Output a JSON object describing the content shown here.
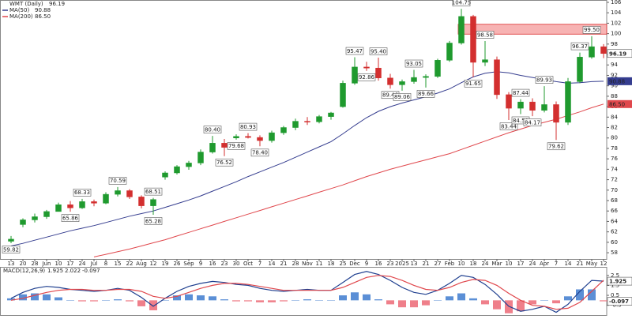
{
  "chart_data": [
    {
      "type": "candlestick",
      "title": "WMT (Daily)",
      "categories": [
        "13",
        "20",
        "28",
        "Jun",
        "10",
        "17",
        "24",
        "Jul",
        "8",
        "15",
        "22",
        "Aug",
        "12",
        "19",
        "26",
        "Sep",
        "9",
        "16",
        "23",
        "30",
        "Oct",
        "7",
        "14",
        "21",
        "28",
        "Nov",
        "11",
        "18",
        "25",
        "Dec",
        "9",
        "16",
        "23",
        "2025",
        "13",
        "21",
        "27",
        "Feb",
        "10",
        "18",
        "24",
        "Mar",
        "10",
        "17",
        "24",
        "Apr",
        "7",
        "14",
        "21",
        "May",
        "12"
      ],
      "open": [
        60.2,
        63.4,
        64.3,
        64.9,
        65.9,
        67.2,
        66.6,
        67.8,
        67.5,
        69.2,
        69.9,
        68.7,
        67.0,
        72.5,
        73.3,
        74.5,
        75.2,
        77.3,
        79.0,
        80.0,
        80.3,
        80.1,
        79.5,
        81.0,
        82.0,
        83.2,
        83.1,
        84.1,
        86.0,
        90.5,
        93.6,
        93.4,
        91.5,
        90.2,
        90.8,
        91.6,
        91.8,
        94.9,
        98.2,
        103.3,
        94.5,
        95.0,
        88.3,
        85.7,
        86.9,
        85.3,
        86.4,
        83.0,
        90.8,
        95.5,
        97.5
      ],
      "high": [
        61.2,
        64.6,
        65.5,
        66.2,
        67.6,
        67.9,
        68.33,
        68.2,
        69.6,
        70.59,
        70.2,
        69.0,
        68.51,
        73.6,
        74.8,
        75.6,
        77.8,
        80.4,
        79.8,
        80.7,
        80.93,
        80.5,
        81.4,
        82.3,
        83.7,
        84.0,
        84.4,
        85.0,
        91.0,
        95.47,
        94.6,
        95.4,
        92.3,
        91.2,
        93.05,
        92.2,
        95.2,
        98.6,
        104.75,
        103.6,
        98.58,
        95.6,
        88.8,
        87.44,
        87.6,
        89.93,
        87.0,
        91.5,
        96.37,
        99.5,
        98.0
      ],
      "low": [
        59.82,
        62.9,
        63.8,
        64.5,
        65.9,
        65.86,
        66.4,
        66.9,
        67.3,
        68.8,
        68.3,
        66.5,
        65.28,
        72.0,
        73.0,
        73.9,
        74.8,
        77.0,
        76.52,
        79.68,
        79.9,
        78.4,
        79.1,
        80.6,
        81.5,
        82.5,
        82.8,
        83.5,
        85.8,
        90.2,
        92.86,
        91.0,
        89.46,
        89.06,
        90.4,
        89.66,
        91.5,
        94.6,
        97.9,
        91.65,
        93.8,
        87.5,
        83.44,
        84.58,
        84.17,
        84.9,
        79.62,
        82.5,
        90.5,
        95.2,
        95.3
      ],
      "close": [
        60.6,
        64.3,
        64.9,
        65.9,
        67.2,
        66.6,
        67.8,
        67.5,
        69.2,
        69.9,
        68.7,
        67.0,
        68.2,
        73.3,
        74.5,
        75.2,
        77.3,
        79.0,
        78.2,
        80.3,
        80.1,
        79.5,
        81.0,
        82.0,
        83.2,
        83.1,
        84.1,
        84.8,
        90.5,
        93.6,
        93.4,
        91.5,
        90.2,
        90.8,
        91.6,
        91.8,
        94.9,
        98.2,
        103.3,
        94.5,
        95.0,
        88.3,
        85.7,
        86.9,
        85.3,
        86.4,
        83.0,
        90.8,
        95.5,
        97.5,
        96.19
      ],
      "up_color": "#1f9a2e",
      "down_color": "#d32f2f",
      "series": [
        {
          "name": "MA(50)",
          "color": "#353d8f",
          "values": [
            59.3,
            59.8,
            60.4,
            61.0,
            61.6,
            62.2,
            62.7,
            63.2,
            63.8,
            64.4,
            65.0,
            65.5,
            66.0,
            66.7,
            67.4,
            68.1,
            68.9,
            69.8,
            70.7,
            71.6,
            72.6,
            73.5,
            74.4,
            75.3,
            76.3,
            77.3,
            78.3,
            79.3,
            80.8,
            82.4,
            83.9,
            85.1,
            86.0,
            86.7,
            87.3,
            87.9,
            88.6,
            89.4,
            90.6,
            91.7,
            92.4,
            92.7,
            92.5,
            92.0,
            91.6,
            91.2,
            90.8,
            90.5,
            90.6,
            90.8,
            90.88
          ]
        },
        {
          "name": "MA(200)",
          "color": "#e0474c",
          "values": [
            null,
            null,
            null,
            null,
            null,
            null,
            null,
            57.2,
            57.7,
            58.2,
            58.7,
            59.3,
            59.9,
            60.5,
            61.2,
            61.9,
            62.6,
            63.3,
            64.0,
            64.7,
            65.4,
            66.1,
            66.8,
            67.5,
            68.2,
            68.9,
            69.6,
            70.3,
            71.0,
            71.8,
            72.6,
            73.3,
            74.0,
            74.6,
            75.2,
            75.8,
            76.4,
            77.0,
            77.8,
            78.6,
            79.4,
            80.2,
            81.0,
            81.7,
            82.4,
            83.0,
            83.6,
            84.3,
            85.0,
            85.8,
            86.5
          ],
          "value_labels": [
            null,
            null,
            null,
            null,
            null,
            null,
            null,
            null,
            null,
            null,
            null,
            null,
            null,
            null,
            null,
            null,
            null,
            null,
            null,
            null,
            null,
            null,
            null,
            null,
            null,
            null,
            null,
            null,
            null,
            null,
            null,
            null,
            null,
            null,
            null,
            null,
            null,
            null,
            null,
            null,
            null,
            null,
            null,
            null,
            null,
            null,
            null,
            null,
            null,
            null,
            "86.50"
          ]
        }
      ],
      "annotations": [
        59.82,
        65.86,
        68.33,
        70.59,
        65.28,
        68.51,
        {
          "value": 80.4,
          "label": "80.40"
        },
        76.52,
        79.68,
        80.93,
        {
          "value": 78.4,
          "label": "78.40"
        },
        95.47,
        92.86,
        {
          "value": 95.4,
          "label": "95.40"
        },
        89.46,
        89.06,
        93.05,
        89.66,
        104.75,
        91.65,
        98.58,
        83.44,
        84.58,
        87.44,
        84.17,
        89.93,
        79.62,
        96.37,
        {
          "value": 99.5,
          "label": "99.50"
        }
      ],
      "resistance_zone": [
        99.9,
        101.8
      ],
      "zone_color": "#f49a9a",
      "ylim": [
        56.8,
        106.45
      ],
      "yticks": [
        58,
        60,
        62,
        64,
        66,
        68,
        70,
        72,
        74,
        76,
        78,
        80,
        82,
        84,
        86,
        88,
        90,
        92,
        94,
        96,
        98,
        100,
        102,
        104,
        106
      ]
    },
    {
      "type": "macd",
      "title": "MACD(12,26,9)",
      "series": [
        {
          "name": "MACD",
          "color": "#1f3f8f",
          "values": [
            0.2,
            0.8,
            1.2,
            1.4,
            1.3,
            1.1,
            1.0,
            0.9,
            1.0,
            1.2,
            1.0,
            0.3,
            -0.6,
            0.2,
            0.9,
            1.4,
            1.7,
            1.9,
            1.8,
            1.6,
            1.5,
            1.2,
            1.0,
            0.9,
            1.0,
            1.1,
            1.0,
            1.0,
            1.8,
            2.6,
            2.9,
            2.6,
            2.0,
            1.3,
            0.8,
            0.6,
            1.0,
            1.7,
            2.5,
            2.3,
            1.6,
            0.6,
            -0.6,
            -1.1,
            -0.9,
            -0.6,
            -1.2,
            -0.4,
            0.9,
            2.0,
            1.925
          ]
        },
        {
          "name": "Signal",
          "color": "#e0474c",
          "values": [
            0.0,
            0.2,
            0.5,
            0.8,
            1.0,
            1.1,
            1.1,
            1.0,
            1.0,
            1.1,
            1.1,
            0.9,
            0.4,
            0.2,
            0.4,
            0.8,
            1.2,
            1.5,
            1.7,
            1.7,
            1.6,
            1.4,
            1.2,
            1.0,
            1.0,
            1.0,
            1.0,
            1.0,
            1.3,
            1.8,
            2.3,
            2.5,
            2.4,
            2.0,
            1.5,
            1.1,
            1.0,
            1.3,
            1.8,
            2.1,
            2.0,
            1.5,
            0.7,
            0.0,
            -0.5,
            -0.6,
            -0.9,
            -0.8,
            -0.2,
            0.9,
            2.022
          ]
        },
        {
          "name": "Histogram",
          "color": "#5b8fd6",
          "negative_color": "#ef7f8a",
          "values": [
            0.2,
            0.6,
            0.7,
            0.6,
            0.3,
            0.0,
            -0.1,
            -0.1,
            0.0,
            0.1,
            -0.1,
            -0.6,
            -1.0,
            0.0,
            0.5,
            0.6,
            0.5,
            0.4,
            0.1,
            -0.1,
            -0.1,
            -0.2,
            -0.2,
            -0.1,
            0.0,
            0.1,
            0.0,
            0.0,
            0.5,
            0.8,
            0.6,
            0.1,
            -0.4,
            -0.7,
            -0.7,
            -0.5,
            0.0,
            0.4,
            0.7,
            0.2,
            -0.4,
            -0.9,
            -1.3,
            -1.1,
            -0.4,
            0.0,
            -0.3,
            0.4,
            1.1,
            1.1,
            -0.097
          ]
        }
      ],
      "ylim": [
        -1.4,
        3.2
      ],
      "yticks": [
        -0.5,
        0.5,
        1.5,
        2.5
      ]
    }
  ]
}
